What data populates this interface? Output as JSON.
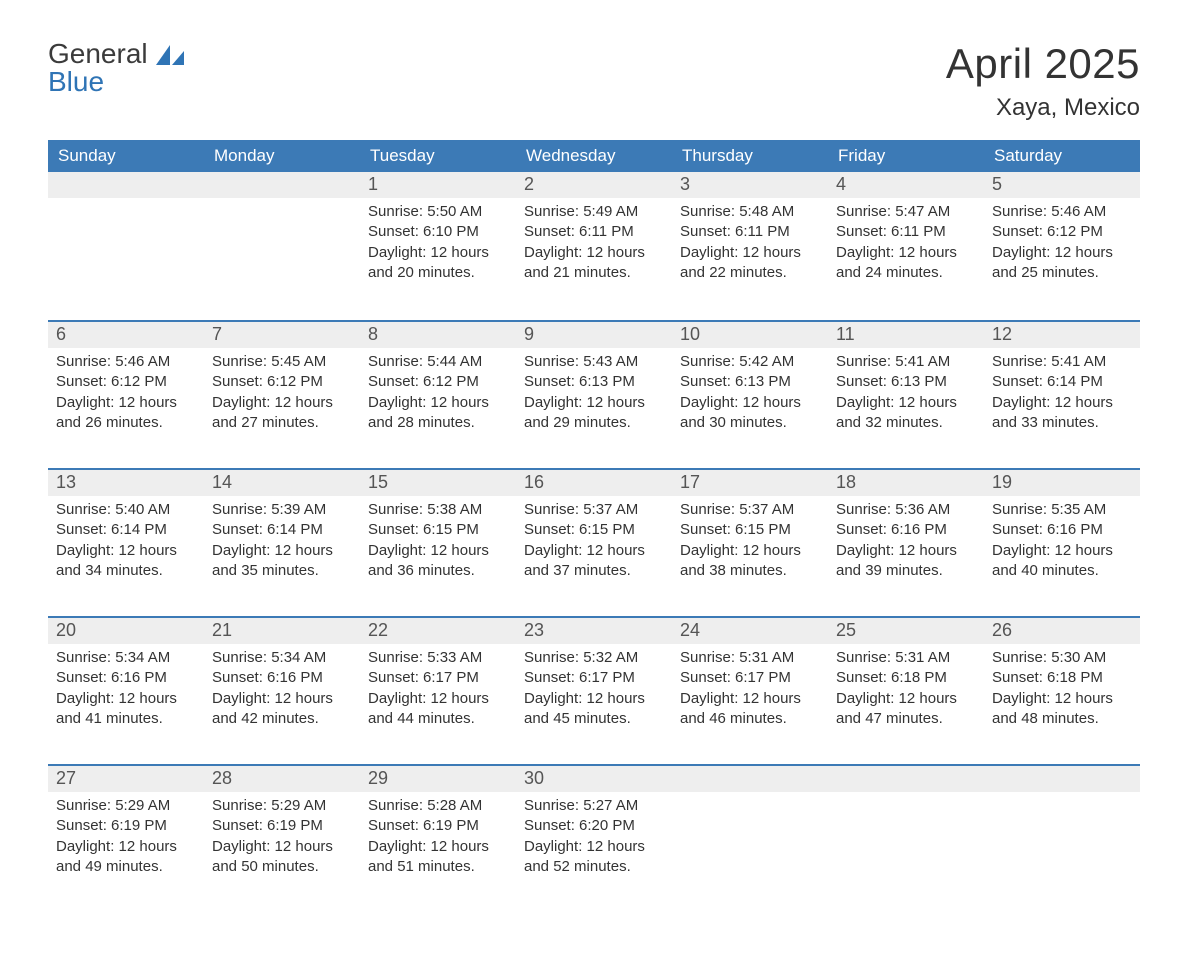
{
  "logo": {
    "line1": "General",
    "line2": "Blue"
  },
  "title": "April 2025",
  "location": "Xaya, Mexico",
  "colors": {
    "header_bg": "#3c7ab6",
    "header_text": "#ffffff",
    "daynum_bg": "#eeeeee",
    "week_border": "#3c7ab6",
    "text": "#333333",
    "logo_blue": "#2f74b5"
  },
  "day_labels": [
    "Sunday",
    "Monday",
    "Tuesday",
    "Wednesday",
    "Thursday",
    "Friday",
    "Saturday"
  ],
  "weeks": [
    [
      null,
      null,
      {
        "n": "1",
        "sunrise": "5:50 AM",
        "sunset": "6:10 PM",
        "daylight": "12 hours and 20 minutes."
      },
      {
        "n": "2",
        "sunrise": "5:49 AM",
        "sunset": "6:11 PM",
        "daylight": "12 hours and 21 minutes."
      },
      {
        "n": "3",
        "sunrise": "5:48 AM",
        "sunset": "6:11 PM",
        "daylight": "12 hours and 22 minutes."
      },
      {
        "n": "4",
        "sunrise": "5:47 AM",
        "sunset": "6:11 PM",
        "daylight": "12 hours and 24 minutes."
      },
      {
        "n": "5",
        "sunrise": "5:46 AM",
        "sunset": "6:12 PM",
        "daylight": "12 hours and 25 minutes."
      }
    ],
    [
      {
        "n": "6",
        "sunrise": "5:46 AM",
        "sunset": "6:12 PM",
        "daylight": "12 hours and 26 minutes."
      },
      {
        "n": "7",
        "sunrise": "5:45 AM",
        "sunset": "6:12 PM",
        "daylight": "12 hours and 27 minutes."
      },
      {
        "n": "8",
        "sunrise": "5:44 AM",
        "sunset": "6:12 PM",
        "daylight": "12 hours and 28 minutes."
      },
      {
        "n": "9",
        "sunrise": "5:43 AM",
        "sunset": "6:13 PM",
        "daylight": "12 hours and 29 minutes."
      },
      {
        "n": "10",
        "sunrise": "5:42 AM",
        "sunset": "6:13 PM",
        "daylight": "12 hours and 30 minutes."
      },
      {
        "n": "11",
        "sunrise": "5:41 AM",
        "sunset": "6:13 PM",
        "daylight": "12 hours and 32 minutes."
      },
      {
        "n": "12",
        "sunrise": "5:41 AM",
        "sunset": "6:14 PM",
        "daylight": "12 hours and 33 minutes."
      }
    ],
    [
      {
        "n": "13",
        "sunrise": "5:40 AM",
        "sunset": "6:14 PM",
        "daylight": "12 hours and 34 minutes."
      },
      {
        "n": "14",
        "sunrise": "5:39 AM",
        "sunset": "6:14 PM",
        "daylight": "12 hours and 35 minutes."
      },
      {
        "n": "15",
        "sunrise": "5:38 AM",
        "sunset": "6:15 PM",
        "daylight": "12 hours and 36 minutes."
      },
      {
        "n": "16",
        "sunrise": "5:37 AM",
        "sunset": "6:15 PM",
        "daylight": "12 hours and 37 minutes."
      },
      {
        "n": "17",
        "sunrise": "5:37 AM",
        "sunset": "6:15 PM",
        "daylight": "12 hours and 38 minutes."
      },
      {
        "n": "18",
        "sunrise": "5:36 AM",
        "sunset": "6:16 PM",
        "daylight": "12 hours and 39 minutes."
      },
      {
        "n": "19",
        "sunrise": "5:35 AM",
        "sunset": "6:16 PM",
        "daylight": "12 hours and 40 minutes."
      }
    ],
    [
      {
        "n": "20",
        "sunrise": "5:34 AM",
        "sunset": "6:16 PM",
        "daylight": "12 hours and 41 minutes."
      },
      {
        "n": "21",
        "sunrise": "5:34 AM",
        "sunset": "6:16 PM",
        "daylight": "12 hours and 42 minutes."
      },
      {
        "n": "22",
        "sunrise": "5:33 AM",
        "sunset": "6:17 PM",
        "daylight": "12 hours and 44 minutes."
      },
      {
        "n": "23",
        "sunrise": "5:32 AM",
        "sunset": "6:17 PM",
        "daylight": "12 hours and 45 minutes."
      },
      {
        "n": "24",
        "sunrise": "5:31 AM",
        "sunset": "6:17 PM",
        "daylight": "12 hours and 46 minutes."
      },
      {
        "n": "25",
        "sunrise": "5:31 AM",
        "sunset": "6:18 PM",
        "daylight": "12 hours and 47 minutes."
      },
      {
        "n": "26",
        "sunrise": "5:30 AM",
        "sunset": "6:18 PM",
        "daylight": "12 hours and 48 minutes."
      }
    ],
    [
      {
        "n": "27",
        "sunrise": "5:29 AM",
        "sunset": "6:19 PM",
        "daylight": "12 hours and 49 minutes."
      },
      {
        "n": "28",
        "sunrise": "5:29 AM",
        "sunset": "6:19 PM",
        "daylight": "12 hours and 50 minutes."
      },
      {
        "n": "29",
        "sunrise": "5:28 AM",
        "sunset": "6:19 PM",
        "daylight": "12 hours and 51 minutes."
      },
      {
        "n": "30",
        "sunrise": "5:27 AM",
        "sunset": "6:20 PM",
        "daylight": "12 hours and 52 minutes."
      },
      null,
      null,
      null
    ]
  ],
  "labels": {
    "sunrise": "Sunrise:",
    "sunset": "Sunset:",
    "daylight": "Daylight:"
  }
}
